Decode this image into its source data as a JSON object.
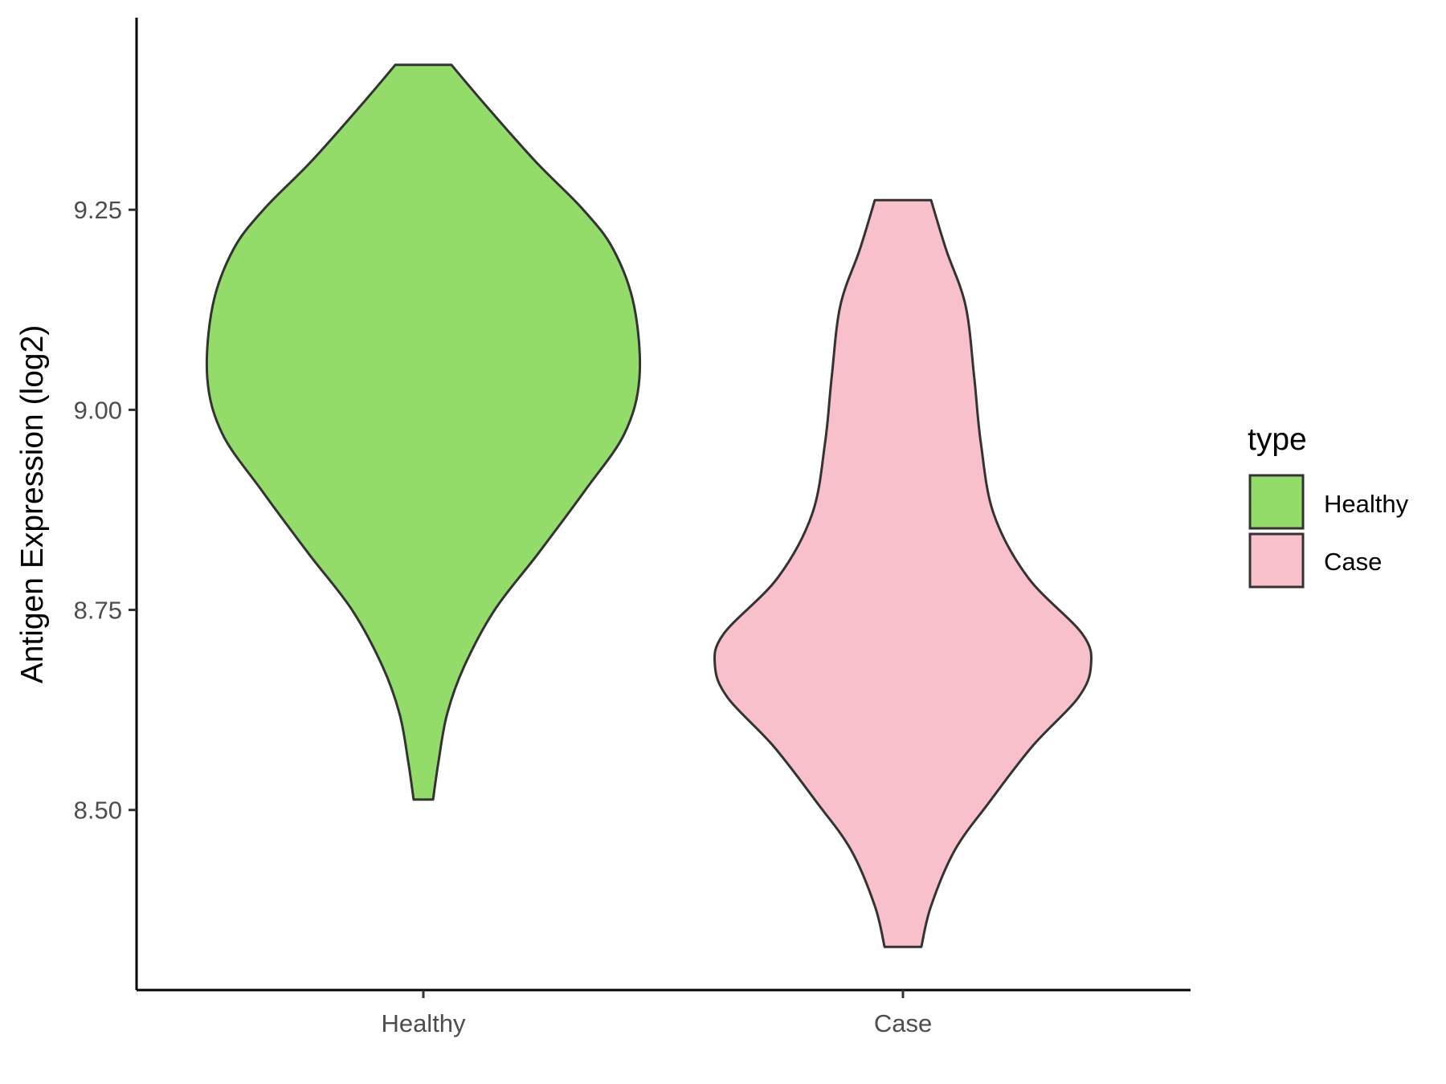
{
  "chart_data": {
    "type": "violin",
    "title": "",
    "xlabel": "",
    "ylabel": "Antigen Expression (log2)",
    "categories": [
      "Healthy",
      "Case"
    ],
    "ylim": [
      8.275,
      9.49
    ],
    "yticks": [
      "8.50",
      "8.75",
      "9.00",
      "9.25"
    ],
    "grid": false,
    "legend": {
      "title": "type",
      "position": "right",
      "entries": [
        {
          "label": "Healthy",
          "color": "#93dc6a"
        },
        {
          "label": "Case",
          "color": "#f7c0cb"
        }
      ]
    },
    "outline_color": "#333333",
    "series": [
      {
        "name": "Healthy",
        "color": "#93dc6a",
        "min": 8.513,
        "max": 9.431,
        "profile": [
          [
            9.431,
            0.13
          ],
          [
            9.38,
            0.29
          ],
          [
            9.31,
            0.52
          ],
          [
            9.25,
            0.74
          ],
          [
            9.2,
            0.88
          ],
          [
            9.13,
            0.975
          ],
          [
            9.04,
            1.0
          ],
          [
            8.97,
            0.93
          ],
          [
            8.9,
            0.75
          ],
          [
            8.82,
            0.53
          ],
          [
            8.75,
            0.33
          ],
          [
            8.68,
            0.19
          ],
          [
            8.62,
            0.11
          ],
          [
            8.56,
            0.07
          ],
          [
            8.513,
            0.045
          ]
        ]
      },
      {
        "name": "Case",
        "color": "#f7c0cb",
        "min": 8.329,
        "max": 9.262,
        "profile": [
          [
            9.262,
            0.13
          ],
          [
            9.2,
            0.2
          ],
          [
            9.13,
            0.29
          ],
          [
            9.04,
            0.33
          ],
          [
            8.96,
            0.36
          ],
          [
            8.87,
            0.42
          ],
          [
            8.79,
            0.58
          ],
          [
            8.72,
            0.83
          ],
          [
            8.68,
            0.87
          ],
          [
            8.64,
            0.81
          ],
          [
            8.58,
            0.6
          ],
          [
            8.51,
            0.4
          ],
          [
            8.45,
            0.24
          ],
          [
            8.38,
            0.13
          ],
          [
            8.329,
            0.085
          ]
        ]
      }
    ]
  }
}
